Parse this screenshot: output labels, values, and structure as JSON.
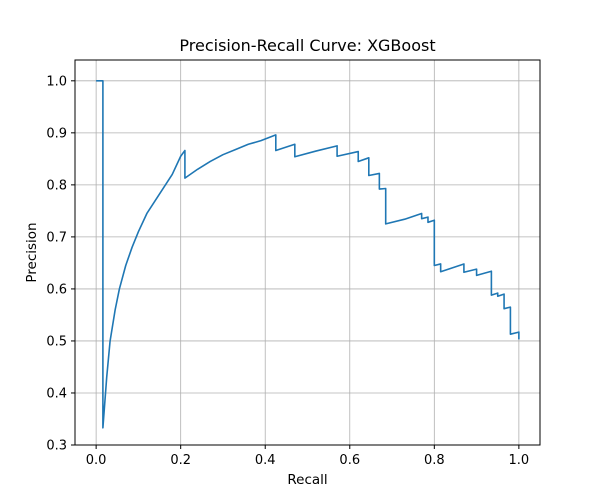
{
  "chart_data": {
    "type": "line",
    "title": "Precision-Recall Curve: XGBoost",
    "xlabel": "Recall",
    "ylabel": "Precision",
    "xlim": [
      -0.05,
      1.05
    ],
    "ylim": [
      0.3,
      1.04
    ],
    "grid": true,
    "legend": "none",
    "line_color": "#1f77b4",
    "x_ticks": [
      {
        "value": 0.0,
        "label": "0.0"
      },
      {
        "value": 0.2,
        "label": "0.2"
      },
      {
        "value": 0.4,
        "label": "0.4"
      },
      {
        "value": 0.6,
        "label": "0.6"
      },
      {
        "value": 0.8,
        "label": "0.8"
      },
      {
        "value": 1.0,
        "label": "1.0"
      }
    ],
    "y_ticks": [
      {
        "value": 0.3,
        "label": "0.3"
      },
      {
        "value": 0.4,
        "label": "0.4"
      },
      {
        "value": 0.5,
        "label": "0.5"
      },
      {
        "value": 0.6,
        "label": "0.6"
      },
      {
        "value": 0.7,
        "label": "0.7"
      },
      {
        "value": 0.8,
        "label": "0.8"
      },
      {
        "value": 0.9,
        "label": "0.9"
      },
      {
        "value": 1.0,
        "label": "1.0"
      }
    ],
    "series": [
      {
        "points": [
          [
            0.0,
            1.0
          ],
          [
            0.016,
            1.0
          ],
          [
            0.016,
            0.333
          ],
          [
            0.025,
            0.43
          ],
          [
            0.033,
            0.5
          ],
          [
            0.045,
            0.56
          ],
          [
            0.055,
            0.6
          ],
          [
            0.07,
            0.645
          ],
          [
            0.085,
            0.68
          ],
          [
            0.1,
            0.71
          ],
          [
            0.12,
            0.745
          ],
          [
            0.14,
            0.77
          ],
          [
            0.16,
            0.795
          ],
          [
            0.18,
            0.82
          ],
          [
            0.2,
            0.855
          ],
          [
            0.21,
            0.866
          ],
          [
            0.21,
            0.813
          ],
          [
            0.24,
            0.83
          ],
          [
            0.27,
            0.845
          ],
          [
            0.3,
            0.858
          ],
          [
            0.33,
            0.868
          ],
          [
            0.36,
            0.878
          ],
          [
            0.39,
            0.885
          ],
          [
            0.425,
            0.896
          ],
          [
            0.425,
            0.866
          ],
          [
            0.47,
            0.878
          ],
          [
            0.47,
            0.854
          ],
          [
            0.52,
            0.865
          ],
          [
            0.57,
            0.875
          ],
          [
            0.57,
            0.855
          ],
          [
            0.62,
            0.864
          ],
          [
            0.62,
            0.845
          ],
          [
            0.645,
            0.852
          ],
          [
            0.645,
            0.818
          ],
          [
            0.67,
            0.822
          ],
          [
            0.67,
            0.792
          ],
          [
            0.685,
            0.793
          ],
          [
            0.685,
            0.725
          ],
          [
            0.73,
            0.734
          ],
          [
            0.77,
            0.745
          ],
          [
            0.77,
            0.735
          ],
          [
            0.785,
            0.738
          ],
          [
            0.785,
            0.728
          ],
          [
            0.8,
            0.732
          ],
          [
            0.8,
            0.645
          ],
          [
            0.815,
            0.648
          ],
          [
            0.815,
            0.633
          ],
          [
            0.87,
            0.648
          ],
          [
            0.87,
            0.632
          ],
          [
            0.9,
            0.638
          ],
          [
            0.9,
            0.626
          ],
          [
            0.935,
            0.634
          ],
          [
            0.935,
            0.588
          ],
          [
            0.95,
            0.592
          ],
          [
            0.95,
            0.586
          ],
          [
            0.965,
            0.59
          ],
          [
            0.965,
            0.562
          ],
          [
            0.98,
            0.565
          ],
          [
            0.98,
            0.513
          ],
          [
            1.0,
            0.517
          ],
          [
            1.0,
            0.503
          ]
        ]
      }
    ]
  }
}
